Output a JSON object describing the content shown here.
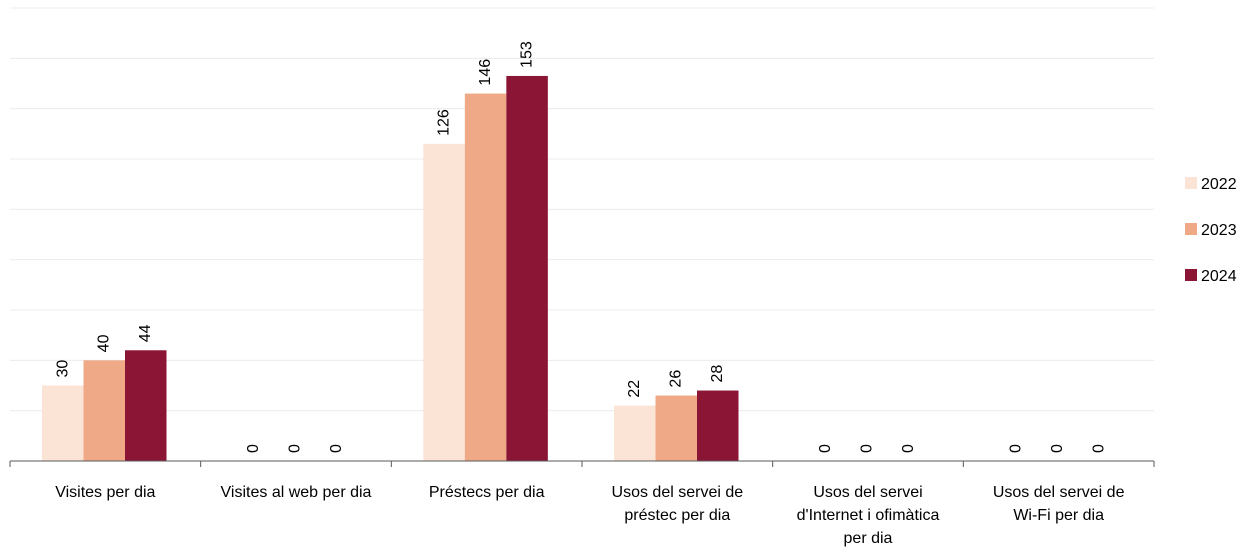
{
  "chart_data": {
    "type": "bar",
    "categories": [
      [
        "Visites per dia"
      ],
      [
        "Visites al web per dia"
      ],
      [
        "Préstecs per dia"
      ],
      [
        "Usos del servei de",
        "préstec per dia"
      ],
      [
        "Usos del servei",
        "d'Internet i ofimàtica",
        "per dia"
      ],
      [
        "Usos del servei de",
        "Wi-Fi per dia"
      ]
    ],
    "series": [
      {
        "name": "2022",
        "color": "#fbe3d6",
        "values": [
          30,
          0,
          126,
          22,
          0,
          0
        ]
      },
      {
        "name": "2023",
        "color": "#f0a986",
        "values": [
          40,
          0,
          146,
          26,
          0,
          0
        ]
      },
      {
        "name": "2024",
        "color": "#8b1535",
        "values": [
          44,
          0,
          153,
          28,
          0,
          0
        ]
      }
    ],
    "ylim": [
      0,
      180
    ],
    "grid": true,
    "legend": "right"
  }
}
